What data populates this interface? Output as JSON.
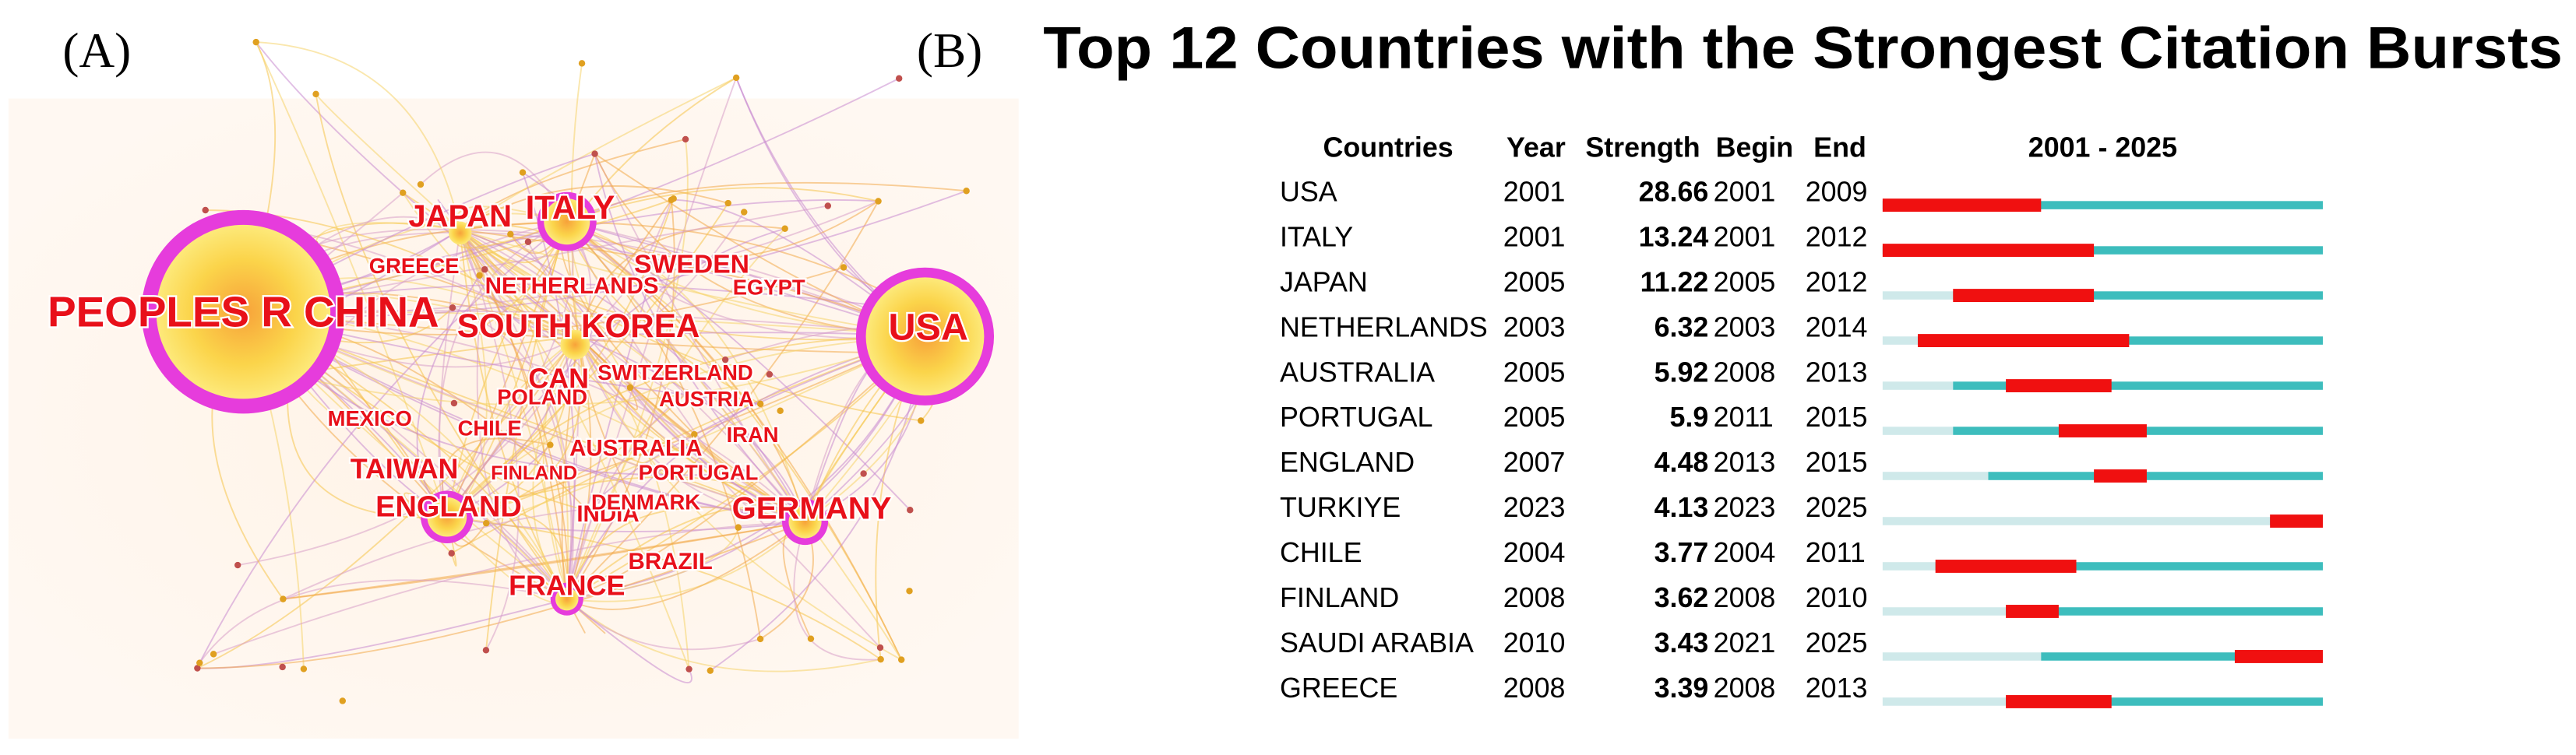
{
  "panel_a": {
    "label": "(A)",
    "nodes": [
      "PEOPLES R CHINA",
      "USA",
      "SOUTH KOREA",
      "ITALY",
      "JAPAN",
      "GERMANY",
      "ENGLAND",
      "FRANCE",
      "TAIWAN",
      "SWEDEN",
      "NETHERLANDS",
      "GREECE",
      "EGYPT",
      "CAN",
      "SWITZERLAND",
      "POLAND",
      "AUSTRIA",
      "MEXICO",
      "CHILE",
      "AUSTRALIA",
      "IRAN",
      "FINLAND",
      "PORTUGAL",
      "INDIA",
      "DENMARK",
      "BRAZIL"
    ]
  },
  "panel_b": {
    "label": "(B)",
    "title": "Top 12 Countries with the Strongest Citation Bursts",
    "table": {
      "headers": [
        "Countries",
        "Year",
        "Strength",
        "Begin",
        "End",
        "2001 - 2025"
      ],
      "rows": [
        [
          "USA",
          2001,
          28.66,
          2001,
          2009
        ],
        [
          "ITALY",
          2001,
          13.24,
          2001,
          2012
        ],
        [
          "JAPAN",
          2005,
          11.22,
          2005,
          2012
        ],
        [
          "NETHERLANDS",
          2003,
          6.32,
          2003,
          2014
        ],
        [
          "AUSTRALIA",
          2005,
          5.92,
          2008,
          2013
        ],
        [
          "PORTUGAL",
          2005,
          5.9,
          2011,
          2015
        ],
        [
          "ENGLAND",
          2007,
          4.48,
          2013,
          2015
        ],
        [
          "TURKIYE",
          2023,
          4.13,
          2023,
          2025
        ],
        [
          "CHILE",
          2004,
          3.77,
          2004,
          2011
        ],
        [
          "FINLAND",
          2008,
          3.62,
          2008,
          2010
        ],
        [
          "SAUDI ARABIA",
          2010,
          3.43,
          2021,
          2025
        ],
        [
          "GREECE",
          2008,
          3.39,
          2008,
          2013
        ]
      ]
    }
  }
}
